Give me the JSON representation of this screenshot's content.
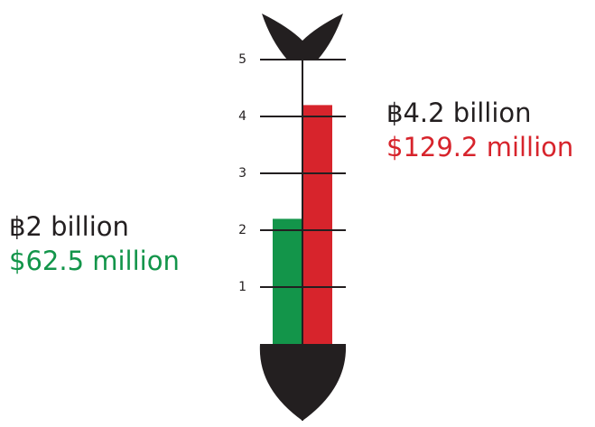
{
  "chart_data": {
    "type": "arrow-bar",
    "values": [
      2.2,
      4.2
    ],
    "value_labels": [
      "฿2 billion",
      "฿4.2 billion"
    ],
    "secondary_labels": [
      "$62.5 million",
      "$129.2 million"
    ],
    "colors": [
      "#13954a",
      "#d7242c"
    ],
    "ylim": [
      0,
      5
    ],
    "yticks": [
      1,
      2,
      3,
      4,
      5
    ]
  }
}
